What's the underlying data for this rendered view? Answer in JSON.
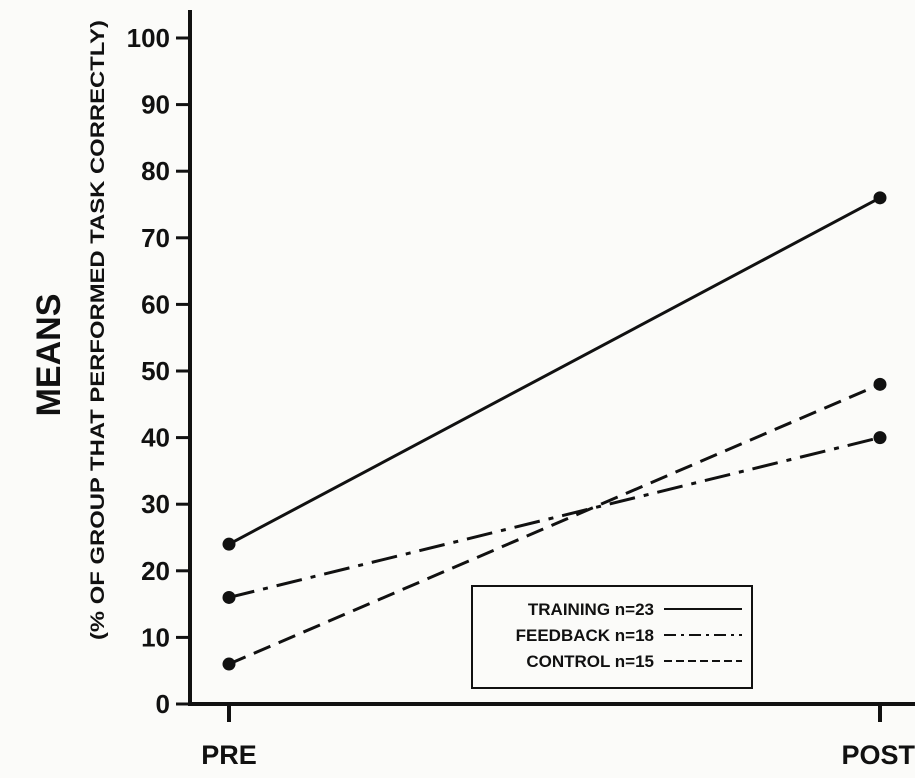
{
  "chart_data": {
    "type": "line",
    "title": "",
    "ylabel": "MEANS",
    "ylabel_sub": "(% OF GROUP THAT PERFORMED TASK CORRECTLY)",
    "xlabel": "",
    "categories": [
      "PRE",
      "POST"
    ],
    "ylim": [
      0,
      100
    ],
    "yticks": [
      0,
      10,
      20,
      30,
      40,
      50,
      60,
      70,
      80,
      90,
      100
    ],
    "grid": false,
    "legend_position": "bottom-center",
    "series": [
      {
        "name": "TRAINING n=23",
        "values": [
          24,
          76
        ],
        "style": "solid"
      },
      {
        "name": "FEEDBACK n=18",
        "values": [
          16,
          40
        ],
        "style": "dash-dot"
      },
      {
        "name": "CONTROL n=15",
        "values": [
          6,
          48
        ],
        "style": "dashed"
      }
    ]
  },
  "colors": {
    "ink": "#111111",
    "background": "#fbfbf9"
  }
}
